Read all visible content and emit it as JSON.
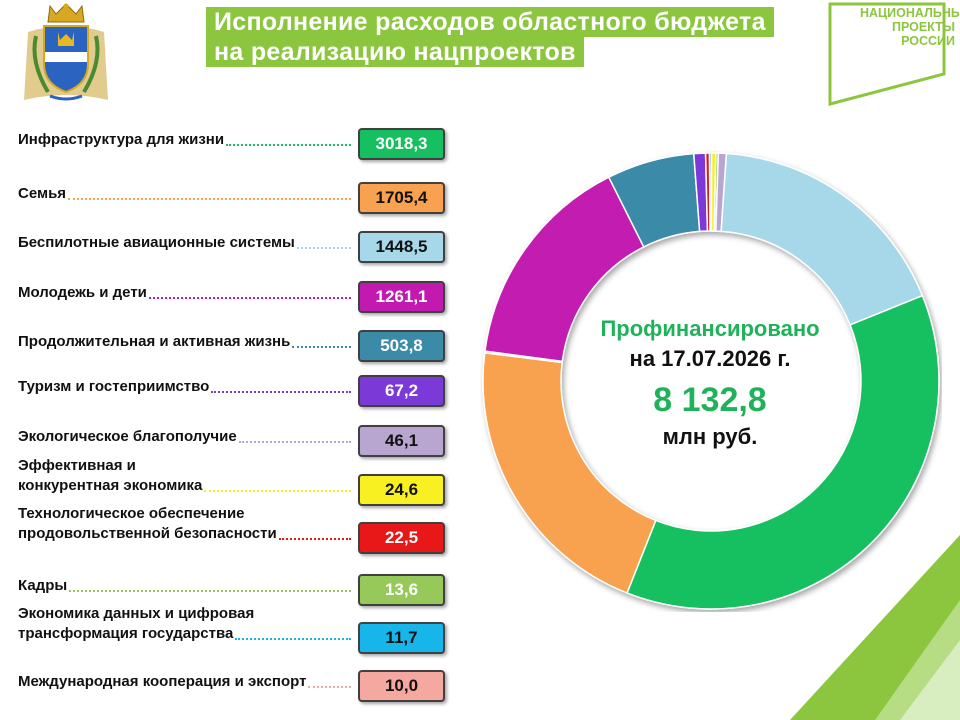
{
  "header": {
    "title_line1": "Исполнение расходов областного бюджета",
    "title_line2": "на реализацию нацпроектов",
    "logo_lines": [
      "НАЦИОНАЛЬНЫЕ",
      "ПРОЕКТЫ",
      "РОССИИ"
    ],
    "coat_of_arms_icon": "kaluga-coat-of-arms-icon",
    "accent_color": "#8cc63f"
  },
  "center": {
    "line1": "Профинансировано",
    "line2": "на 17.07.2026 г.",
    "total": "8 132,8",
    "unit": "млн руб."
  },
  "chart_data": {
    "type": "pie",
    "donut": true,
    "categories": [
      "Инфраструктура для жизни",
      "Семья",
      "Беспилотные авиационные системы",
      "Молодежь и дети",
      "Продолжительная и активная жизнь",
      "Туризм и гостеприимство",
      "Экологическое благополучие",
      "Эффективная и конкурентная экономика",
      "Технологическое обеспечение продовольственной безопасности",
      "Кадры",
      "Экономика данных и цифровая трансформация государства",
      "Международная кооперация и экспорт"
    ],
    "label_lines": [
      [
        "Инфраструктура для жизни"
      ],
      [
        "Семья"
      ],
      [
        "Беспилотные авиационные системы"
      ],
      [
        "Молодежь и дети"
      ],
      [
        "Продолжительная и активная жизнь"
      ],
      [
        "Туризм и гостеприимство"
      ],
      [
        "Экологическое благополучие"
      ],
      [
        "Эффективная и",
        "конкурентная экономика"
      ],
      [
        "Технологическое обеспечение",
        "продовольственной безопасности"
      ],
      [
        "Кадры"
      ],
      [
        "Экономика данных и цифровая",
        "трансформация государства"
      ],
      [
        "Международная кооперация и экспорт"
      ]
    ],
    "values": [
      3018.3,
      1705.4,
      1448.5,
      1261.1,
      503.8,
      67.2,
      46.1,
      24.6,
      22.5,
      13.6,
      11.7,
      10.0
    ],
    "value_labels": [
      "3018,3",
      "1705,4",
      "1448,5",
      "1261,1",
      "503,8",
      "67,2",
      "46,1",
      "24,6",
      "22,5",
      "13,6",
      "11,7",
      "10,0"
    ],
    "colors": [
      "#16c060",
      "#f8a150",
      "#a6d8ea",
      "#c21ab0",
      "#3a8aa8",
      "#7b39d8",
      "#b9a6d0",
      "#f8f020",
      "#e81818",
      "#96c85a",
      "#16b6ea",
      "#f4a8a0"
    ],
    "value_text_colors": [
      "#ffffff",
      "#111111",
      "#111111",
      "#ffffff",
      "#ffffff",
      "#ffffff",
      "#111111",
      "#111111",
      "#ffffff",
      "#ffffff",
      "#111111",
      "#111111"
    ],
    "slice_order": [
      0,
      1,
      11,
      3,
      4,
      5,
      8,
      10,
      7,
      9,
      6,
      2
    ],
    "start_angle_deg": 68,
    "legend": "left"
  }
}
